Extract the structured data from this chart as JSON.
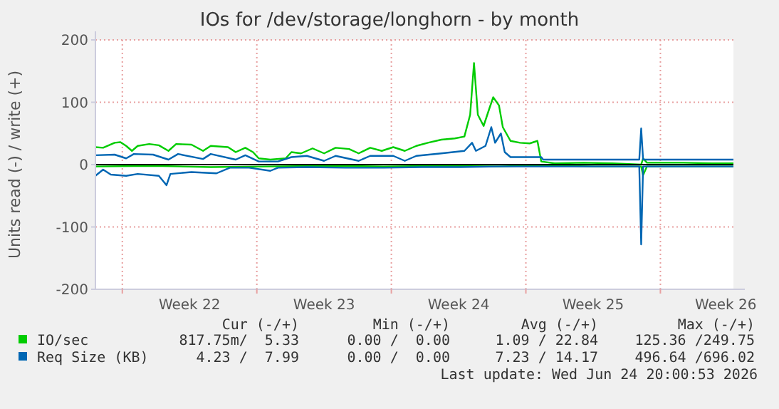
{
  "chart_data": {
    "type": "line",
    "title": "IOs for /dev/storage/longhorn - by month",
    "ylabel": "Units read (-) / write (+)",
    "xlim": [
      "2026-05-23T14:24",
      "2026-06-25T19:12"
    ],
    "ylim": [
      -200,
      200
    ],
    "yticks": [
      -200,
      -100,
      0,
      100,
      200
    ],
    "xticks": [
      {
        "value": "2026-05-25",
        "label": null
      },
      {
        "value": "2026-05-28T12:00",
        "label": "Week 22"
      },
      {
        "value": "2026-06-01",
        "label": null
      },
      {
        "value": "2026-06-04T12:00",
        "label": "Week 23"
      },
      {
        "value": "2026-06-08",
        "label": null
      },
      {
        "value": "2026-06-11T12:00",
        "label": "Week 24"
      },
      {
        "value": "2026-06-15",
        "label": null
      },
      {
        "value": "2026-06-18T12:00",
        "label": "Week 25"
      },
      {
        "value": "2026-06-22",
        "label": null
      },
      {
        "value": "2026-06-25T09:36",
        "label": "Week 26"
      }
    ],
    "grid": true,
    "legend": "bottom",
    "line_style": "solid",
    "marker": "none",
    "ref_lines": [
      {
        "axis": "y",
        "value": 0,
        "color": "#000000"
      }
    ],
    "series": [
      {
        "name": "IO/sec",
        "color": "#00cc00",
        "x": [
          "2026-05-23T14:24",
          "2026-05-24T00:00",
          "2026-05-24T14:24",
          "2026-05-24T21:36",
          "2026-05-25T04:48",
          "2026-05-25T12:00",
          "2026-05-25T19:12",
          "2026-05-26T09:36",
          "2026-05-26T21:36",
          "2026-05-27T09:36",
          "2026-05-27T19:12",
          "2026-05-28T14:24",
          "2026-05-29T04:48",
          "2026-05-29T14:24",
          "2026-05-30T12:00",
          "2026-05-30T21:36",
          "2026-05-31T09:36",
          "2026-05-31T19:12",
          "2026-06-01T02:24",
          "2026-06-01T16:48",
          "2026-06-02T12:00",
          "2026-06-02T19:12",
          "2026-06-03T07:12",
          "2026-06-03T21:36",
          "2026-06-04T12:00",
          "2026-06-05T02:24",
          "2026-06-05T19:12",
          "2026-06-06T07:12",
          "2026-06-06T21:36",
          "2026-06-07T12:00",
          "2026-06-08T02:24",
          "2026-06-08T16:48",
          "2026-06-09T07:12",
          "2026-06-09T21:36",
          "2026-06-10T14:24",
          "2026-06-11T07:12",
          "2026-06-11T19:12",
          "2026-06-12T02:24",
          "2026-06-12T07:12",
          "2026-06-12T12:00",
          "2026-06-12T19:12",
          "2026-06-13T02:24",
          "2026-06-13T07:12",
          "2026-06-13T14:24",
          "2026-06-13T19:12",
          "2026-06-14T04:48",
          "2026-06-14T16:48",
          "2026-06-15T04:48",
          "2026-06-15T14:24",
          "2026-06-15T19:12",
          "2026-06-16T12:00",
          "2026-06-18T00:00",
          "2026-06-19T12:00",
          "2026-06-21T00:00",
          "2026-06-21T02:24",
          "2026-06-21T07:12",
          "2026-06-23T04:48",
          "2026-06-24T16:48",
          "2026-06-25T19:12"
        ],
        "values": [
          28,
          27,
          35,
          36,
          30,
          22,
          30,
          33,
          31,
          22,
          33,
          32,
          22,
          30,
          28,
          20,
          27,
          20,
          10,
          8,
          10,
          20,
          18,
          26,
          18,
          27,
          25,
          18,
          27,
          22,
          28,
          22,
          30,
          35,
          40,
          42,
          45,
          80,
          163,
          80,
          62,
          90,
          108,
          95,
          60,
          38,
          35,
          34,
          38,
          5,
          2,
          3,
          2,
          0,
          10,
          3,
          3,
          2,
          2
        ]
      },
      {
        "color": "#00cc00",
        "x": [
          "2026-05-23T14:24",
          "2026-05-26T14:24",
          "2026-05-29T14:24",
          "2026-06-01T14:24",
          "2026-06-04T14:24",
          "2026-06-07T14:24",
          "2026-06-10T14:24",
          "2026-06-13T14:24",
          "2026-06-15T19:12",
          "2026-06-18T14:24",
          "2026-06-21T00:00",
          "2026-06-21T02:24",
          "2026-06-21T07:12",
          "2026-06-23T14:24",
          "2026-06-25T19:12"
        ],
        "values": [
          -3,
          -2,
          -4,
          -3,
          -2,
          -3,
          -2,
          -3,
          -1,
          -3,
          -3,
          -17,
          -3,
          -3,
          -3
        ]
      },
      {
        "name": "Req Size (KB)",
        "color": "#0066b3",
        "x": [
          "2026-05-23T14:24",
          "2026-05-24T14:24",
          "2026-05-25T04:48",
          "2026-05-25T14:24",
          "2026-05-26T14:24",
          "2026-05-27T09:36",
          "2026-05-27T21:36",
          "2026-05-29T04:48",
          "2026-05-29T14:24",
          "2026-05-30T21:36",
          "2026-05-31T09:36",
          "2026-06-01T02:24",
          "2026-06-02T02:24",
          "2026-06-02T19:12",
          "2026-06-03T14:24",
          "2026-06-04T12:00",
          "2026-06-05T02:24",
          "2026-06-06T07:12",
          "2026-06-06T21:36",
          "2026-06-08T02:24",
          "2026-06-08T16:48",
          "2026-06-09T07:12",
          "2026-06-10T14:24",
          "2026-06-11T19:12",
          "2026-06-12T04:48",
          "2026-06-12T09:36",
          "2026-06-12T21:36",
          "2026-06-13T04:48",
          "2026-06-13T09:36",
          "2026-06-13T16:48",
          "2026-06-13T21:36",
          "2026-06-14T04:48",
          "2026-06-15T19:12",
          "2026-06-15T21:36",
          "2026-06-18T14:24",
          "2026-06-20T21:36",
          "2026-06-21T00:00",
          "2026-06-21T02:24",
          "2026-06-23T14:24",
          "2026-06-25T19:12"
        ],
        "values": [
          15,
          16,
          10,
          17,
          16,
          8,
          17,
          9,
          17,
          8,
          15,
          5,
          5,
          12,
          14,
          6,
          14,
          6,
          14,
          14,
          6,
          14,
          18,
          22,
          35,
          22,
          30,
          60,
          35,
          50,
          20,
          12,
          12,
          8,
          8,
          8,
          58,
          8,
          8,
          8
        ]
      },
      {
        "color": "#0066b3",
        "x": [
          "2026-05-23T14:24",
          "2026-05-24T00:00",
          "2026-05-24T09:36",
          "2026-05-25T04:48",
          "2026-05-25T19:12",
          "2026-05-26T21:36",
          "2026-05-27T07:12",
          "2026-05-27T12:00",
          "2026-05-28T14:24",
          "2026-05-29T21:36",
          "2026-05-30T14:24",
          "2026-05-31T14:24",
          "2026-06-01T16:48",
          "2026-06-02T02:24",
          "2026-06-03T14:24",
          "2026-06-05T14:24",
          "2026-06-07T14:24",
          "2026-06-09T14:24",
          "2026-06-11T14:24",
          "2026-06-13T14:24",
          "2026-06-15T19:12",
          "2026-06-18T14:24",
          "2026-06-20T21:36",
          "2026-06-21T00:00",
          "2026-06-21T02:24",
          "2026-06-23T14:24",
          "2026-06-25T19:12"
        ],
        "values": [
          -18,
          -8,
          -16,
          -18,
          -15,
          -18,
          -33,
          -15,
          -12,
          -14,
          -5,
          -5,
          -10,
          -5,
          -4,
          -5,
          -5,
          -4,
          -4,
          -3,
          -3,
          -3,
          -3,
          -128,
          -3,
          -3,
          -3
        ]
      }
    ],
    "annotations": [
      "Cur (-/+)",
      "Min (-/+)",
      "Avg (-/+)",
      "Max (-/+)",
      "817.75m/  5.33",
      "0.00 /  0.00",
      "1.09 / 22.84",
      "125.36 /249.75",
      "4.23 /  7.99",
      "0.00 /  0.00",
      "7.23 / 14.17",
      "496.64 /696.02",
      "Last update: Wed Jun 24 20:00:53 2026"
    ]
  }
}
